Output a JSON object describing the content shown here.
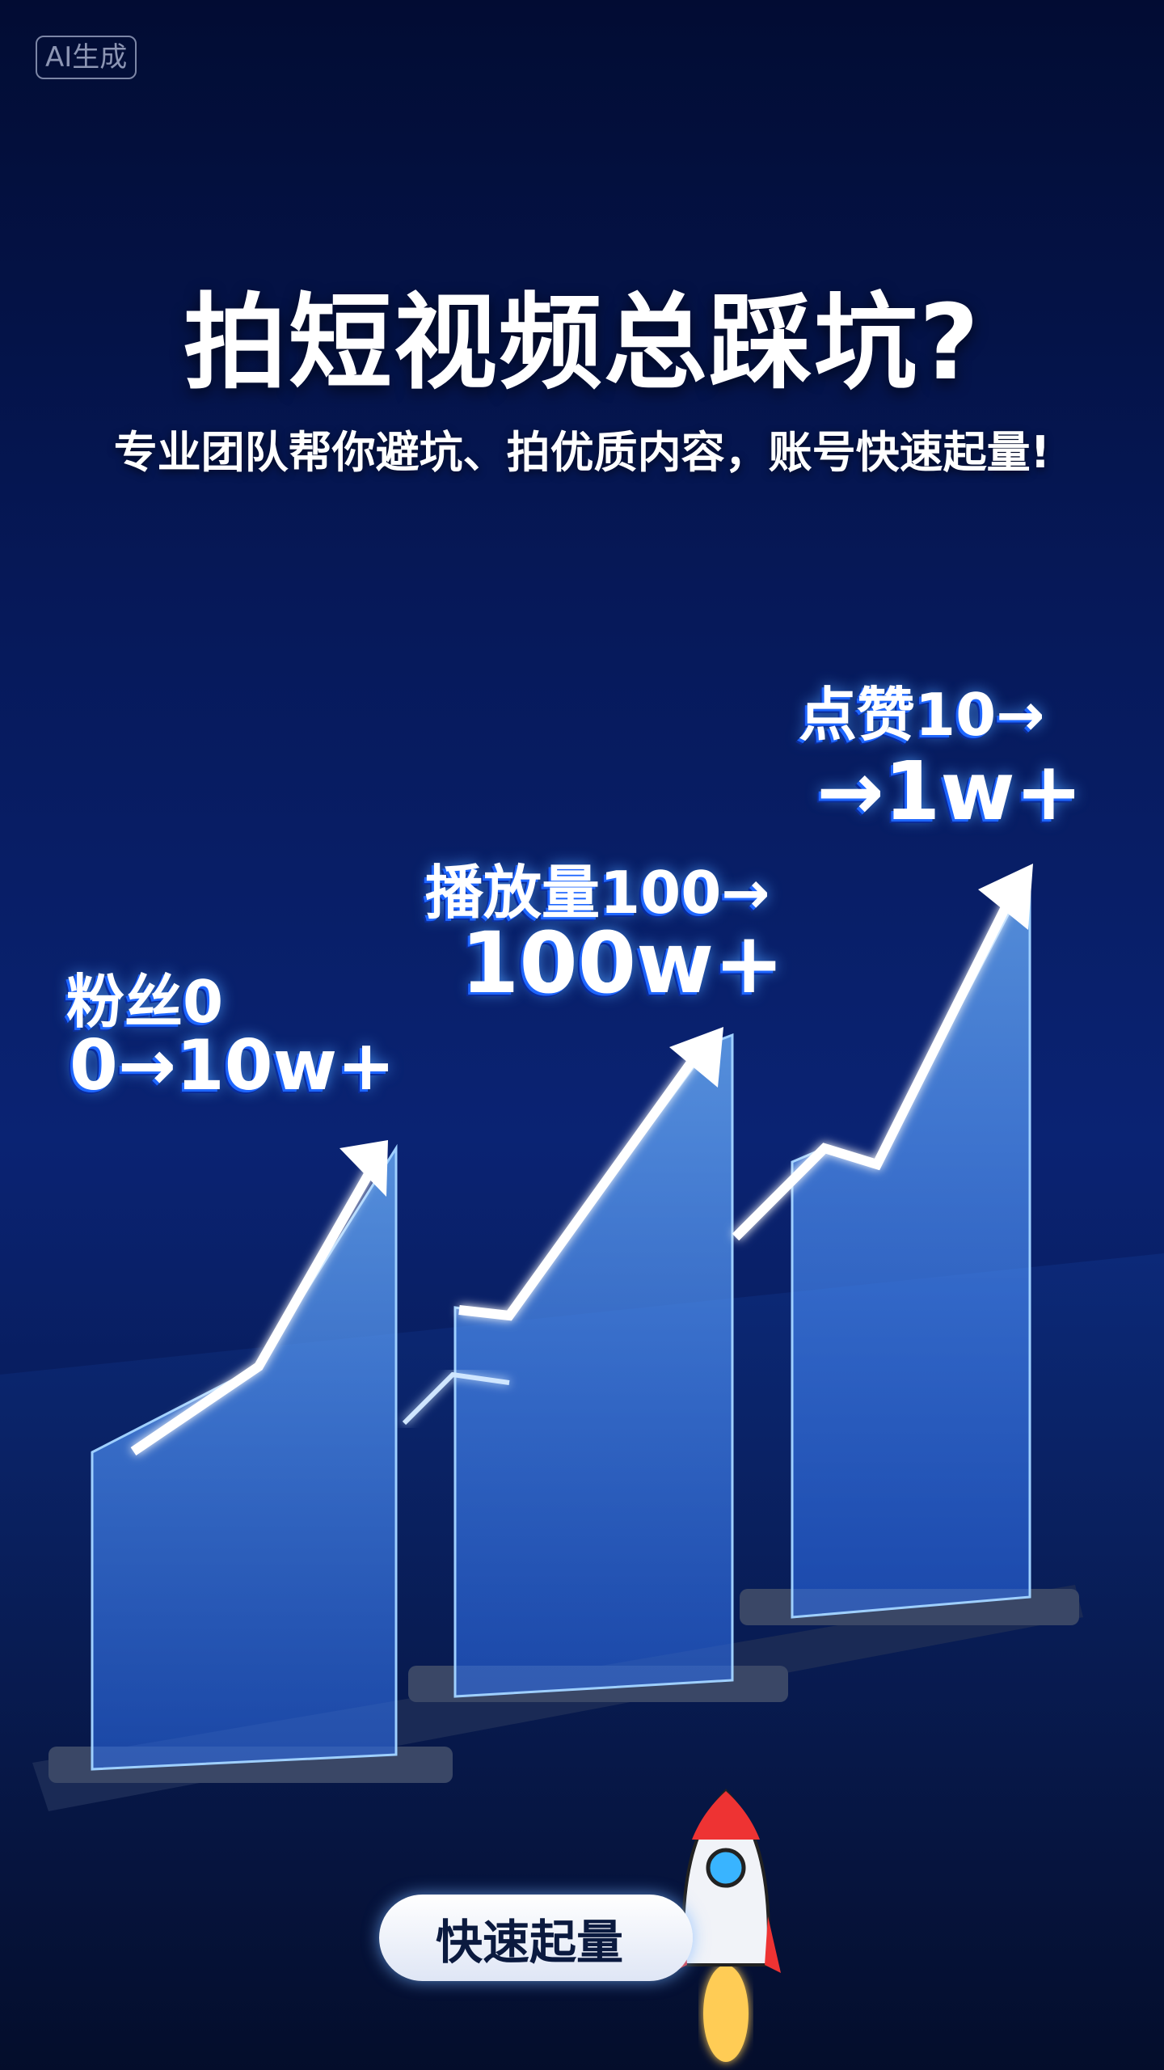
{
  "badge": "AI生成",
  "title": "拍短视频总踩坑?",
  "subtitle": "专业团队帮你避坑、拍优质内容，账号快速起量!",
  "stats": [
    {
      "line1": "粉丝0",
      "line2": "0→10w+"
    },
    {
      "line1": "播放量100→",
      "line2": "100w+"
    },
    {
      "line1": "点赞10→",
      "line2": "→1w+"
    }
  ],
  "cta": "快速起量",
  "colors": {
    "accent": "#3aa0ff",
    "background": "#06195a"
  },
  "icons": [
    "rocket-icon",
    "arrow-up-right-icon"
  ]
}
